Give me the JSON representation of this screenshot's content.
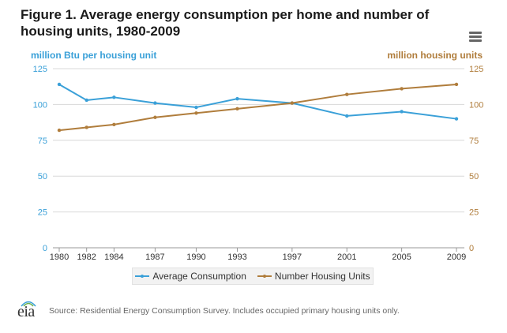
{
  "header": {
    "title": "Figure 1. Average energy consumption per home and number of housing units, 1980-2009",
    "menu_icon": "hamburger-menu-icon"
  },
  "chart_data": {
    "type": "line",
    "title": "Figure 1. Average energy consumption per home and number of housing units, 1980-2009",
    "x": [
      1980,
      1982,
      1984,
      1987,
      1990,
      1993,
      1997,
      2001,
      2005,
      2009
    ],
    "x_tick_labels": [
      "1980",
      "1982",
      "1984",
      "1987",
      "1990",
      "1993",
      "1997",
      "2001",
      "2005",
      "2009"
    ],
    "ylabel_left": "million Btu per housing unit",
    "ylabel_right": "million housing units",
    "ylim_left": [
      0,
      125
    ],
    "ylim_right": [
      0,
      125
    ],
    "y_ticks": [
      0,
      25,
      50,
      75,
      100,
      125
    ],
    "grid": true,
    "series": [
      {
        "name": "Average Consumption",
        "axis": "left",
        "color": "#3aa0d8",
        "values": [
          114,
          103,
          105,
          101,
          98,
          104,
          101,
          92,
          95,
          90
        ]
      },
      {
        "name": "Number Housing Units",
        "axis": "right",
        "color": "#b07d3c",
        "values": [
          82,
          84,
          86,
          91,
          94,
          97,
          101,
          107,
          111,
          114
        ]
      }
    ],
    "legend_position": "bottom-center"
  },
  "footer": {
    "logo_text": "eia",
    "source": "Source: Residential Energy Consumption Survey. Includes occupied primary housing units only."
  }
}
